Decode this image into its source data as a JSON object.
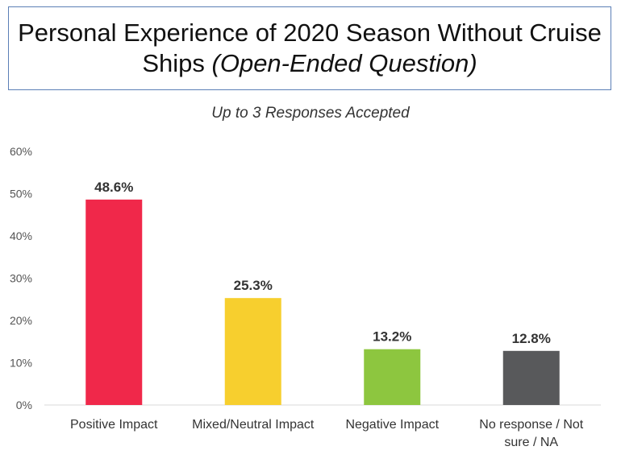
{
  "title": {
    "line1": "Personal Experience of 2020 Season Without Cruise",
    "line2_main": "Ships",
    "line2_italic": "(Open-Ended Question)"
  },
  "subtitle": "Up to 3 Responses Accepted",
  "chart_data": {
    "type": "bar",
    "categories": [
      "Positive Impact",
      "Mixed/Neutral Impact",
      "Negative Impact",
      "No response / Not sure / NA"
    ],
    "category_lines": [
      [
        "Positive Impact"
      ],
      [
        "Mixed/Neutral Impact"
      ],
      [
        "Negative Impact"
      ],
      [
        "No response / Not",
        "sure / NA"
      ]
    ],
    "values": [
      48.6,
      25.3,
      13.2,
      12.8
    ],
    "data_labels": [
      "48.6%",
      "25.3%",
      "13.2%",
      "12.8%"
    ],
    "colors": [
      "#f0284a",
      "#f7cf2e",
      "#8dc63f",
      "#58595b"
    ],
    "ylim": [
      0,
      60
    ],
    "yticks": [
      0,
      10,
      20,
      30,
      40,
      50,
      60
    ],
    "ytick_labels": [
      "0%",
      "10%",
      "20%",
      "30%",
      "40%",
      "50%",
      "60%"
    ],
    "grid": false,
    "xlabel": "",
    "ylabel": ""
  }
}
